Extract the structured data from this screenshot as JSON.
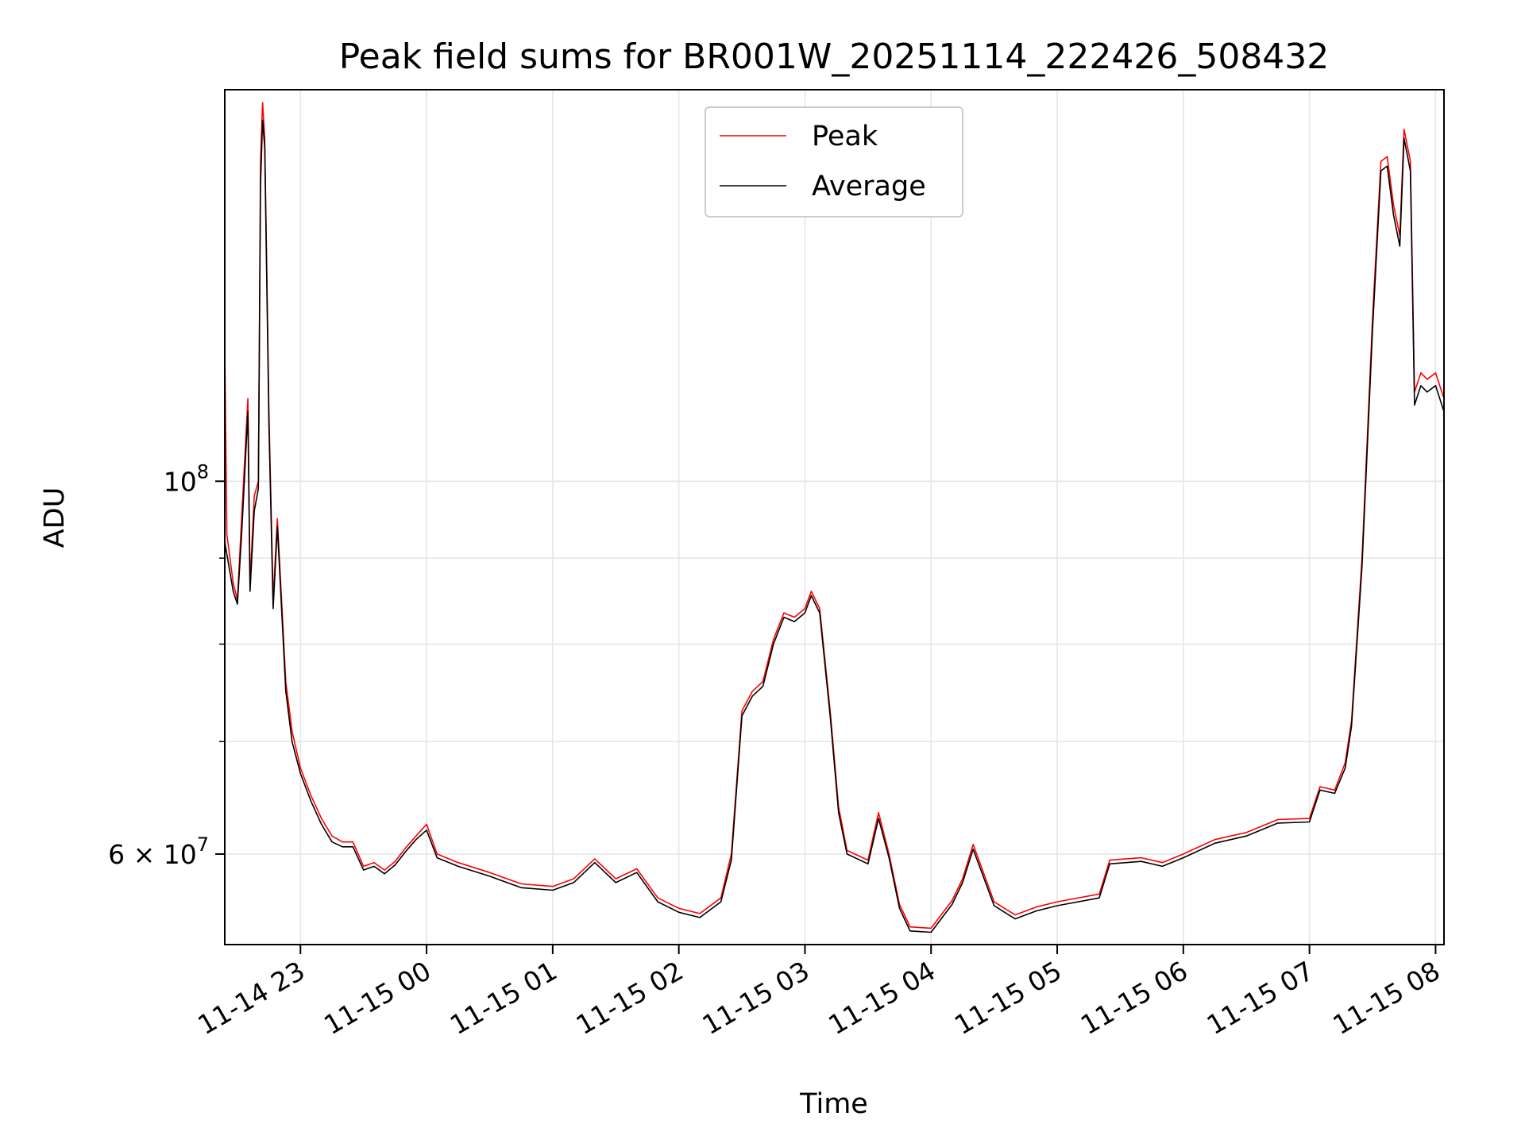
{
  "chart_data": {
    "type": "line",
    "title": "Peak field sums for BR001W_20251114_222426_508432",
    "xlabel": "Time",
    "ylabel": "ADU",
    "yscale": "log",
    "xlim": [
      "2025-11-14 22:24",
      "2025-11-15 08:04"
    ],
    "ylim": [
      53000000,
      171000000
    ],
    "grid": true,
    "legend_position": "top-center",
    "x_ticks": [
      {
        "t": "2025-11-14 23:00",
        "label": "11-14 23"
      },
      {
        "t": "2025-11-15 00:00",
        "label": "11-15 00"
      },
      {
        "t": "2025-11-15 01:00",
        "label": "11-15 01"
      },
      {
        "t": "2025-11-15 02:00",
        "label": "11-15 02"
      },
      {
        "t": "2025-11-15 03:00",
        "label": "11-15 03"
      },
      {
        "t": "2025-11-15 04:00",
        "label": "11-15 04"
      },
      {
        "t": "2025-11-15 05:00",
        "label": "11-15 05"
      },
      {
        "t": "2025-11-15 06:00",
        "label": "11-15 06"
      },
      {
        "t": "2025-11-15 07:00",
        "label": "11-15 07"
      },
      {
        "t": "2025-11-15 08:00",
        "label": "11-15 08"
      }
    ],
    "y_major_ticks": [
      {
        "value": 60000000,
        "base": "6 × 10",
        "exp": "7"
      },
      {
        "value": 100000000,
        "base": "10",
        "exp": "8"
      }
    ],
    "y_minor_ticks": [
      70000000,
      80000000,
      90000000
    ],
    "series": [
      {
        "name": "Peak",
        "color": "#ff0000",
        "points": [
          [
            "2025-11-14 22:24",
            120000000
          ],
          [
            "2025-11-14 22:25",
            93000000
          ],
          [
            "2025-11-14 22:28",
            87000000
          ],
          [
            "2025-11-14 22:30",
            85000000
          ],
          [
            "2025-11-14 22:32",
            95000000
          ],
          [
            "2025-11-14 22:35",
            112000000
          ],
          [
            "2025-11-14 22:36",
            87000000
          ],
          [
            "2025-11-14 22:38",
            98000000
          ],
          [
            "2025-11-14 22:40",
            100000000
          ],
          [
            "2025-11-14 22:41",
            155000000
          ],
          [
            "2025-11-14 22:42",
            168000000
          ],
          [
            "2025-11-14 22:43",
            160000000
          ],
          [
            "2025-11-14 22:45",
            110000000
          ],
          [
            "2025-11-14 22:47",
            85000000
          ],
          [
            "2025-11-14 22:49",
            95000000
          ],
          [
            "2025-11-14 22:51",
            85000000
          ],
          [
            "2025-11-14 22:53",
            76000000
          ],
          [
            "2025-11-14 22:56",
            71000000
          ],
          [
            "2025-11-14 23:00",
            67500000
          ],
          [
            "2025-11-14 23:05",
            65000000
          ],
          [
            "2025-11-14 23:10",
            63000000
          ],
          [
            "2025-11-14 23:15",
            61500000
          ],
          [
            "2025-11-14 23:20",
            61000000
          ],
          [
            "2025-11-14 23:25",
            61000000
          ],
          [
            "2025-11-14 23:30",
            59000000
          ],
          [
            "2025-11-14 23:35",
            59300000
          ],
          [
            "2025-11-14 23:40",
            58700000
          ],
          [
            "2025-11-14 23:45",
            59400000
          ],
          [
            "2025-11-14 23:50",
            60500000
          ],
          [
            "2025-11-14 23:55",
            61500000
          ],
          [
            "2025-11-15 00:00",
            62500000
          ],
          [
            "2025-11-15 00:05",
            60000000
          ],
          [
            "2025-11-15 00:15",
            59300000
          ],
          [
            "2025-11-15 00:30",
            58500000
          ],
          [
            "2025-11-15 00:45",
            57600000
          ],
          [
            "2025-11-15 01:00",
            57400000
          ],
          [
            "2025-11-15 01:10",
            58000000
          ],
          [
            "2025-11-15 01:20",
            59600000
          ],
          [
            "2025-11-15 01:30",
            58000000
          ],
          [
            "2025-11-15 01:40",
            58800000
          ],
          [
            "2025-11-15 01:50",
            56500000
          ],
          [
            "2025-11-15 02:00",
            55700000
          ],
          [
            "2025-11-15 02:10",
            55300000
          ],
          [
            "2025-11-15 02:20",
            56500000
          ],
          [
            "2025-11-15 02:25",
            60000000
          ],
          [
            "2025-11-15 02:30",
            73000000
          ],
          [
            "2025-11-15 02:35",
            75000000
          ],
          [
            "2025-11-15 02:40",
            76000000
          ],
          [
            "2025-11-15 02:45",
            80500000
          ],
          [
            "2025-11-15 02:50",
            83500000
          ],
          [
            "2025-11-15 02:55",
            83000000
          ],
          [
            "2025-11-15 03:00",
            84000000
          ],
          [
            "2025-11-15 03:03",
            86000000
          ],
          [
            "2025-11-15 03:07",
            84000000
          ],
          [
            "2025-11-15 03:12",
            73000000
          ],
          [
            "2025-11-15 03:16",
            64000000
          ],
          [
            "2025-11-15 03:20",
            60300000
          ],
          [
            "2025-11-15 03:30",
            59500000
          ],
          [
            "2025-11-15 03:35",
            63500000
          ],
          [
            "2025-11-15 03:40",
            60000000
          ],
          [
            "2025-11-15 03:45",
            56000000
          ],
          [
            "2025-11-15 03:50",
            54300000
          ],
          [
            "2025-11-15 04:00",
            54200000
          ],
          [
            "2025-11-15 04:10",
            56300000
          ],
          [
            "2025-11-15 04:15",
            58000000
          ],
          [
            "2025-11-15 04:20",
            60800000
          ],
          [
            "2025-11-15 04:30",
            56200000
          ],
          [
            "2025-11-15 04:40",
            55200000
          ],
          [
            "2025-11-15 04:50",
            55800000
          ],
          [
            "2025-11-15 05:00",
            56200000
          ],
          [
            "2025-11-15 05:20",
            56800000
          ],
          [
            "2025-11-15 05:25",
            59500000
          ],
          [
            "2025-11-15 05:40",
            59700000
          ],
          [
            "2025-11-15 05:50",
            59300000
          ],
          [
            "2025-11-15 06:00",
            60000000
          ],
          [
            "2025-11-15 06:15",
            61200000
          ],
          [
            "2025-11-15 06:30",
            61800000
          ],
          [
            "2025-11-15 06:45",
            62900000
          ],
          [
            "2025-11-15 07:00",
            63000000
          ],
          [
            "2025-11-15 07:05",
            65800000
          ],
          [
            "2025-11-15 07:12",
            65500000
          ],
          [
            "2025-11-15 07:17",
            68000000
          ],
          [
            "2025-11-15 07:20",
            72000000
          ],
          [
            "2025-11-15 07:25",
            90000000
          ],
          [
            "2025-11-15 07:30",
            125000000
          ],
          [
            "2025-11-15 07:34",
            155000000
          ],
          [
            "2025-11-15 07:37",
            156000000
          ],
          [
            "2025-11-15 07:40",
            146000000
          ],
          [
            "2025-11-15 07:43",
            140000000
          ],
          [
            "2025-11-15 07:45",
            162000000
          ],
          [
            "2025-11-15 07:48",
            155000000
          ],
          [
            "2025-11-15 07:50",
            113000000
          ],
          [
            "2025-11-15 07:53",
            116000000
          ],
          [
            "2025-11-15 07:56",
            115000000
          ],
          [
            "2025-11-15 08:00",
            116000000
          ],
          [
            "2025-11-15 08:04",
            112000000
          ]
        ]
      },
      {
        "name": "Average",
        "color": "#000000",
        "points": [
          [
            "2025-11-14 22:24",
            92000000
          ],
          [
            "2025-11-14 22:28",
            86000000
          ],
          [
            "2025-11-14 22:30",
            84500000
          ],
          [
            "2025-11-14 22:32",
            93000000
          ],
          [
            "2025-11-14 22:35",
            110000000
          ],
          [
            "2025-11-14 22:36",
            86000000
          ],
          [
            "2025-11-14 22:38",
            96000000
          ],
          [
            "2025-11-14 22:40",
            99000000
          ],
          [
            "2025-11-14 22:41",
            150000000
          ],
          [
            "2025-11-14 22:42",
            164000000
          ],
          [
            "2025-11-14 22:43",
            158000000
          ],
          [
            "2025-11-14 22:45",
            108000000
          ],
          [
            "2025-11-14 22:47",
            84000000
          ],
          [
            "2025-11-14 22:49",
            94000000
          ],
          [
            "2025-11-14 22:51",
            84000000
          ],
          [
            "2025-11-14 22:53",
            75000000
          ],
          [
            "2025-11-14 22:56",
            70000000
          ],
          [
            "2025-11-14 23:00",
            67000000
          ],
          [
            "2025-11-14 23:05",
            64500000
          ],
          [
            "2025-11-14 23:10",
            62500000
          ],
          [
            "2025-11-14 23:15",
            61000000
          ],
          [
            "2025-11-14 23:20",
            60600000
          ],
          [
            "2025-11-14 23:25",
            60600000
          ],
          [
            "2025-11-14 23:30",
            58700000
          ],
          [
            "2025-11-14 23:35",
            59000000
          ],
          [
            "2025-11-14 23:40",
            58400000
          ],
          [
            "2025-11-14 23:45",
            59100000
          ],
          [
            "2025-11-14 23:50",
            60200000
          ],
          [
            "2025-11-14 23:55",
            61200000
          ],
          [
            "2025-11-15 00:00",
            62000000
          ],
          [
            "2025-11-15 00:05",
            59700000
          ],
          [
            "2025-11-15 00:15",
            59000000
          ],
          [
            "2025-11-15 00:30",
            58200000
          ],
          [
            "2025-11-15 00:45",
            57300000
          ],
          [
            "2025-11-15 01:00",
            57100000
          ],
          [
            "2025-11-15 01:10",
            57700000
          ],
          [
            "2025-11-15 01:20",
            59300000
          ],
          [
            "2025-11-15 01:30",
            57700000
          ],
          [
            "2025-11-15 01:40",
            58500000
          ],
          [
            "2025-11-15 01:50",
            56200000
          ],
          [
            "2025-11-15 02:00",
            55400000
          ],
          [
            "2025-11-15 02:10",
            55000000
          ],
          [
            "2025-11-15 02:20",
            56200000
          ],
          [
            "2025-11-15 02:25",
            59500000
          ],
          [
            "2025-11-15 02:30",
            72500000
          ],
          [
            "2025-11-15 02:35",
            74500000
          ],
          [
            "2025-11-15 02:40",
            75500000
          ],
          [
            "2025-11-15 02:45",
            80000000
          ],
          [
            "2025-11-15 02:50",
            83000000
          ],
          [
            "2025-11-15 02:55",
            82500000
          ],
          [
            "2025-11-15 03:00",
            83500000
          ],
          [
            "2025-11-15 03:03",
            85500000
          ],
          [
            "2025-11-15 03:07",
            83500000
          ],
          [
            "2025-11-15 03:12",
            72500000
          ],
          [
            "2025-11-15 03:16",
            63500000
          ],
          [
            "2025-11-15 03:20",
            60000000
          ],
          [
            "2025-11-15 03:30",
            59200000
          ],
          [
            "2025-11-15 03:35",
            63000000
          ],
          [
            "2025-11-15 03:40",
            59700000
          ],
          [
            "2025-11-15 03:45",
            55700000
          ],
          [
            "2025-11-15 03:50",
            54000000
          ],
          [
            "2025-11-15 04:00",
            53900000
          ],
          [
            "2025-11-15 04:10",
            56000000
          ],
          [
            "2025-11-15 04:15",
            57700000
          ],
          [
            "2025-11-15 04:20",
            60400000
          ],
          [
            "2025-11-15 04:30",
            55900000
          ],
          [
            "2025-11-15 04:40",
            54900000
          ],
          [
            "2025-11-15 04:50",
            55500000
          ],
          [
            "2025-11-15 05:00",
            55900000
          ],
          [
            "2025-11-15 05:20",
            56500000
          ],
          [
            "2025-11-15 05:25",
            59200000
          ],
          [
            "2025-11-15 05:40",
            59400000
          ],
          [
            "2025-11-15 05:50",
            59000000
          ],
          [
            "2025-11-15 06:00",
            59700000
          ],
          [
            "2025-11-15 06:15",
            60900000
          ],
          [
            "2025-11-15 06:30",
            61500000
          ],
          [
            "2025-11-15 06:45",
            62600000
          ],
          [
            "2025-11-15 07:00",
            62700000
          ],
          [
            "2025-11-15 07:05",
            65500000
          ],
          [
            "2025-11-15 07:12",
            65200000
          ],
          [
            "2025-11-15 07:17",
            67500000
          ],
          [
            "2025-11-15 07:20",
            71500000
          ],
          [
            "2025-11-15 07:25",
            89000000
          ],
          [
            "2025-11-15 07:30",
            123000000
          ],
          [
            "2025-11-15 07:34",
            153000000
          ],
          [
            "2025-11-15 07:37",
            154000000
          ],
          [
            "2025-11-15 07:40",
            144000000
          ],
          [
            "2025-11-15 07:43",
            138000000
          ],
          [
            "2025-11-15 07:45",
            160000000
          ],
          [
            "2025-11-15 07:48",
            153000000
          ],
          [
            "2025-11-15 07:50",
            111000000
          ],
          [
            "2025-11-15 07:53",
            114000000
          ],
          [
            "2025-11-15 07:56",
            113000000
          ],
          [
            "2025-11-15 08:00",
            114000000
          ],
          [
            "2025-11-15 08:04",
            110000000
          ]
        ]
      }
    ]
  }
}
